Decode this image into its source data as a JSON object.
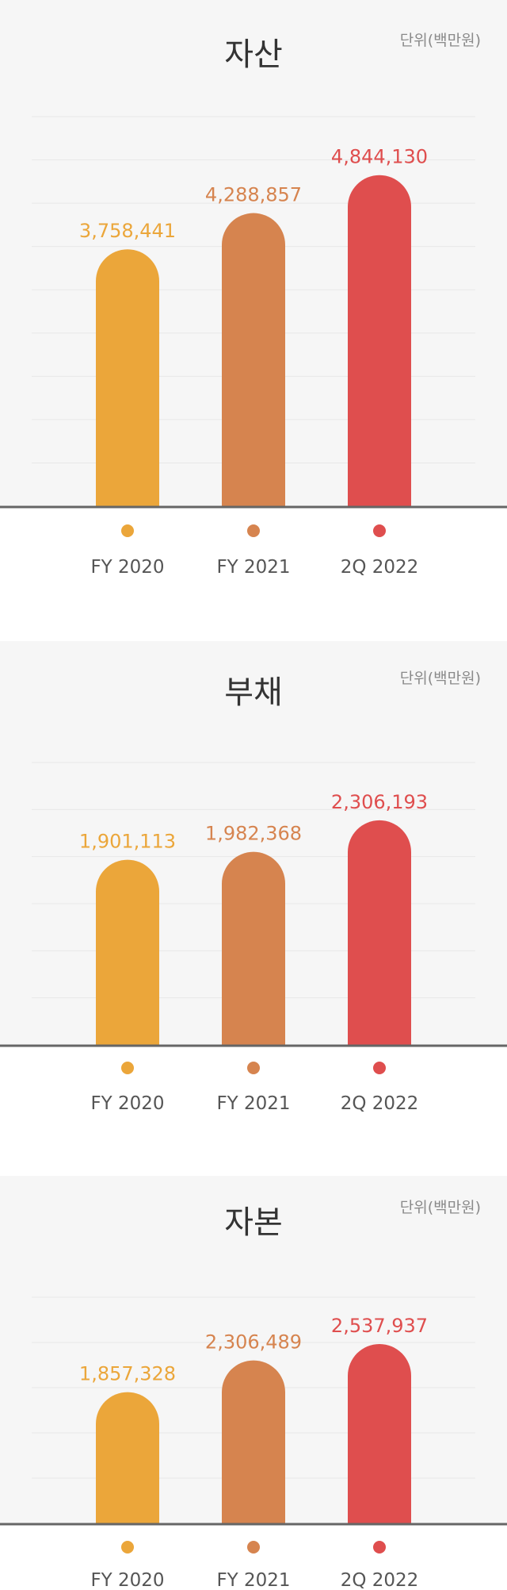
{
  "unit_label": "단위(백만원)",
  "colors": {
    "FY 2020": "#eba63a",
    "FY 2021": "#d6844f",
    "2Q 2022": "#df4e4e",
    "panel_bg": "#f6f6f6",
    "gridline": "#e8e8e8",
    "axis": "#666666"
  },
  "chart_data": [
    {
      "type": "bar",
      "title": "자산",
      "categories": [
        "FY 2020",
        "FY 2021",
        "2Q 2022"
      ],
      "values": [
        3758441,
        4288857,
        4844130
      ],
      "value_labels": [
        "3,758,441",
        "4,288,857",
        "4,844,130"
      ],
      "ylim": [
        0,
        5700000
      ],
      "grid": true
    },
    {
      "type": "bar",
      "title": "부채",
      "categories": [
        "FY 2020",
        "FY 2021",
        "2Q 2022"
      ],
      "values": [
        1901113,
        1982368,
        2306193
      ],
      "value_labels": [
        "1,901,113",
        "1,982,368",
        "2,306,193"
      ],
      "ylim": [
        0,
        2900000
      ],
      "grid": true
    },
    {
      "type": "bar",
      "title": "자본",
      "categories": [
        "FY 2020",
        "FY 2021",
        "2Q 2022"
      ],
      "values": [
        1857328,
        2306489,
        2537937
      ],
      "value_labels": [
        "1,857,328",
        "2,306,489",
        "2,537,937"
      ],
      "ylim": [
        0,
        3200000
      ],
      "grid": true
    }
  ]
}
